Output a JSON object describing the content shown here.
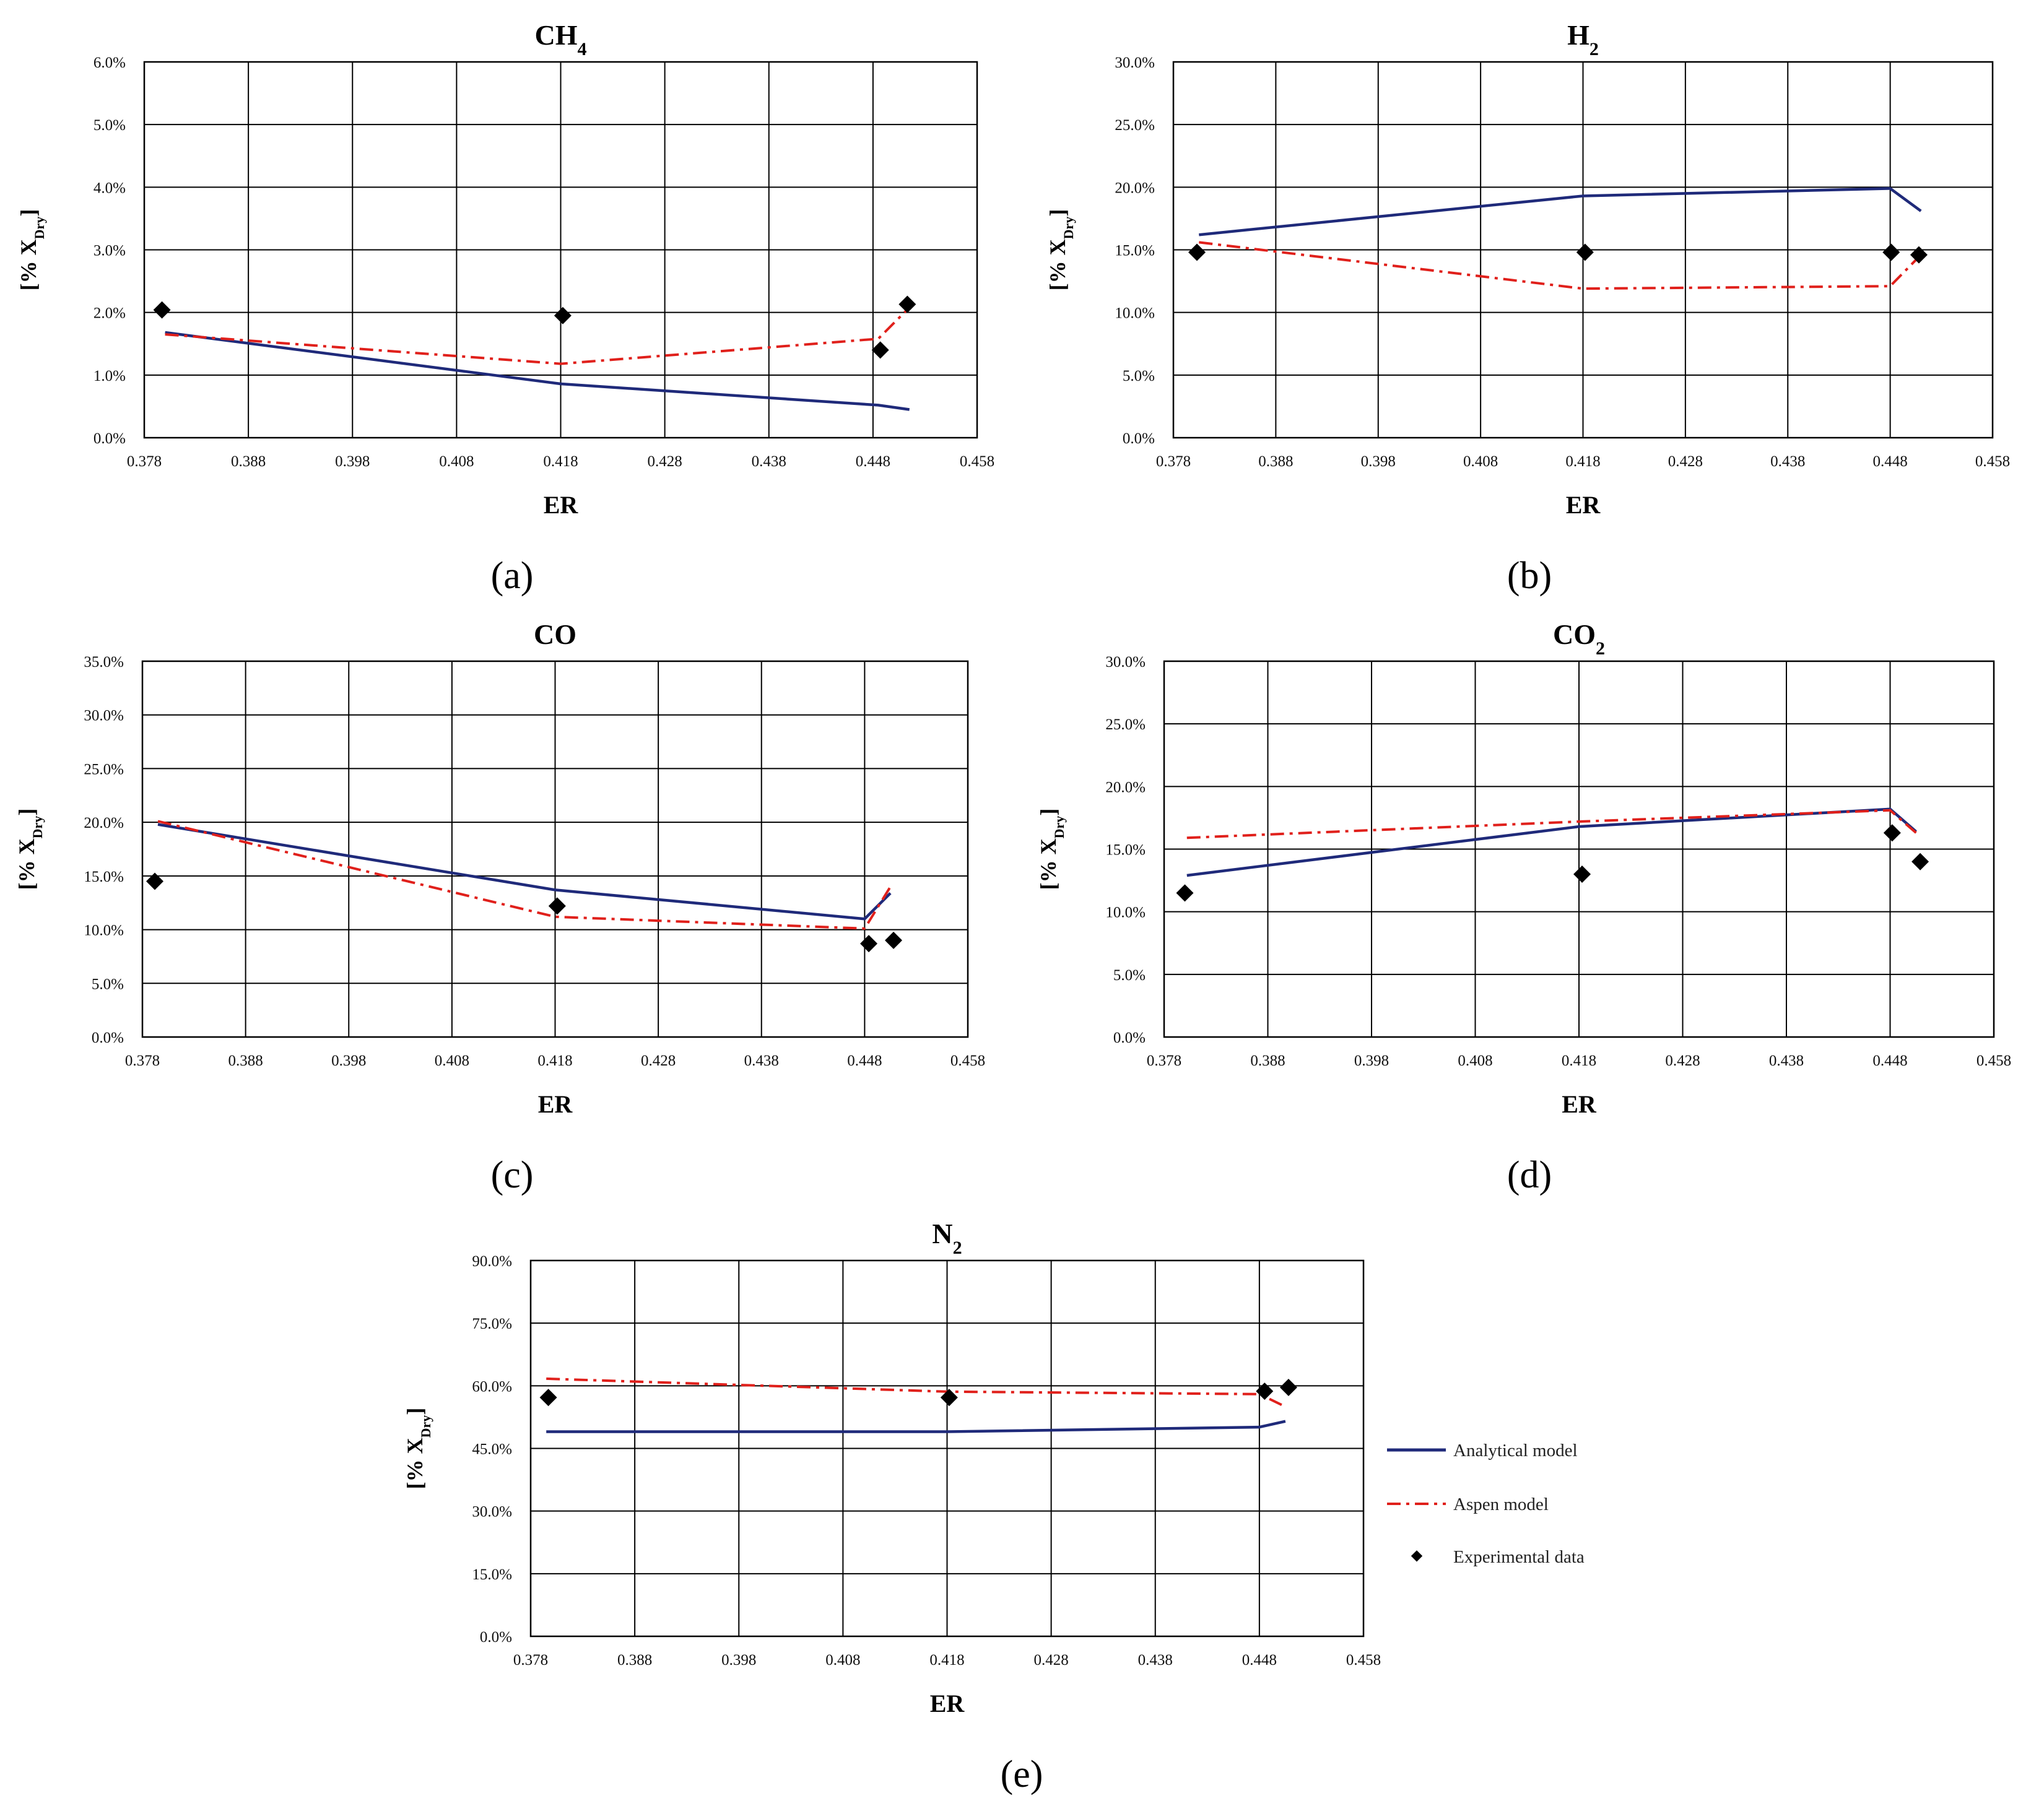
{
  "figure_panels": [
    {
      "id": "a",
      "label": "(a)"
    },
    {
      "id": "b",
      "label": "(b)"
    },
    {
      "id": "c",
      "label": "(c)"
    },
    {
      "id": "d",
      "label": "(d)"
    },
    {
      "id": "e",
      "label": "(e)"
    }
  ],
  "legend": {
    "analytical": "Analytical model",
    "aspen": "Aspen model",
    "experimental": "Experimental data"
  },
  "colors": {
    "analytical": "#1f2a7a",
    "aspen": "#e0201b",
    "experimental": "#000000",
    "grid": "#000000"
  },
  "chart_data": [
    {
      "type": "line",
      "panel": "a",
      "title": "CH",
      "title_sub": "4",
      "xlabel": "ER",
      "ylabel": "[% X",
      "ylabel_sub": "Dry",
      "ylabel_end": "]",
      "xlim": [
        0.378,
        0.458
      ],
      "ylim": [
        0,
        6.0
      ],
      "xticks": [
        "0.378",
        "0.388",
        "0.398",
        "0.408",
        "0.418",
        "0.428",
        "0.438",
        "0.448",
        "0.458"
      ],
      "yticks": [
        "0.0%",
        "1.0%",
        "2.0%",
        "3.0%",
        "4.0%",
        "5.0%",
        "6.0%"
      ],
      "grid": true,
      "series": [
        {
          "name": "Analytical model",
          "style": "solid",
          "x": [
            0.38,
            0.418,
            0.4485,
            0.4515
          ],
          "y": [
            1.68,
            0.86,
            0.52,
            0.45
          ]
        },
        {
          "name": "Aspen model",
          "style": "dashdot",
          "x": [
            0.38,
            0.418,
            0.4485,
            0.4515
          ],
          "y": [
            1.65,
            1.18,
            1.58,
            2.08
          ]
        },
        {
          "name": "Experimental data",
          "style": "marker",
          "x": [
            0.3797,
            0.4182,
            0.4487,
            0.4513
          ],
          "y": [
            2.04,
            1.95,
            1.4,
            2.13
          ]
        }
      ]
    },
    {
      "type": "line",
      "panel": "b",
      "title": "H",
      "title_sub": "2",
      "xlabel": "ER",
      "ylabel": "[% X",
      "ylabel_sub": "Dry",
      "ylabel_end": "]",
      "xlim": [
        0.378,
        0.458
      ],
      "ylim": [
        0,
        30.0
      ],
      "xticks": [
        "0.378",
        "0.388",
        "0.398",
        "0.408",
        "0.418",
        "0.428",
        "0.438",
        "0.448",
        "0.458"
      ],
      "yticks": [
        "0.0%",
        "5.0%",
        "10.0%",
        "15.0%",
        "20.0%",
        "25.0%",
        "30.0%"
      ],
      "grid": true,
      "series": [
        {
          "name": "Analytical model",
          "style": "solid",
          "x": [
            0.3805,
            0.418,
            0.448,
            0.451
          ],
          "y": [
            16.2,
            19.3,
            19.9,
            18.1
          ]
        },
        {
          "name": "Aspen model",
          "style": "dashdot",
          "x": [
            0.3805,
            0.418,
            0.448,
            0.451
          ],
          "y": [
            15.6,
            11.9,
            12.1,
            14.6
          ]
        },
        {
          "name": "Experimental data",
          "style": "marker",
          "x": [
            0.3803,
            0.4182,
            0.4481,
            0.4508
          ],
          "y": [
            14.8,
            14.8,
            14.8,
            14.6
          ]
        }
      ]
    },
    {
      "type": "line",
      "panel": "c",
      "title": "CO",
      "title_sub": "",
      "xlabel": "ER",
      "ylabel": "[% X",
      "ylabel_sub": "Dry",
      "ylabel_end": "]",
      "xlim": [
        0.378,
        0.458
      ],
      "ylim": [
        0,
        35.0
      ],
      "xticks": [
        "0.378",
        "0.388",
        "0.398",
        "0.408",
        "0.418",
        "0.428",
        "0.438",
        "0.448",
        "0.458"
      ],
      "yticks": [
        "0.0%",
        "5.0%",
        "10.0%",
        "15.0%",
        "20.0%",
        "25.0%",
        "30.0%",
        "35.0%"
      ],
      "grid": true,
      "series": [
        {
          "name": "Analytical model",
          "style": "solid",
          "x": [
            0.3795,
            0.418,
            0.448,
            0.4505
          ],
          "y": [
            19.8,
            13.7,
            11.0,
            13.4
          ]
        },
        {
          "name": "Aspen model",
          "style": "dashdot",
          "x": [
            0.3795,
            0.418,
            0.448,
            0.4505
          ],
          "y": [
            20.1,
            11.2,
            10.1,
            14.0
          ]
        },
        {
          "name": "Experimental data",
          "style": "marker",
          "x": [
            0.3792,
            0.4182,
            0.4484,
            0.4508
          ],
          "y": [
            14.5,
            12.2,
            8.7,
            9.0
          ]
        }
      ]
    },
    {
      "type": "line",
      "panel": "d",
      "title": "CO",
      "title_sub": "2",
      "xlabel": "ER",
      "ylabel": "[% X",
      "ylabel_sub": "Dry",
      "ylabel_end": "]",
      "xlim": [
        0.378,
        0.458
      ],
      "ylim": [
        0,
        30.0
      ],
      "xticks": [
        "0.378",
        "0.388",
        "0.398",
        "0.408",
        "0.418",
        "0.428",
        "0.438",
        "0.448",
        "0.458"
      ],
      "yticks": [
        "0.0%",
        "5.0%",
        "10.0%",
        "15.0%",
        "20.0%",
        "25.0%",
        "30.0%"
      ],
      "grid": true,
      "series": [
        {
          "name": "Analytical model",
          "style": "solid",
          "x": [
            0.3802,
            0.418,
            0.448,
            0.4505
          ],
          "y": [
            12.9,
            16.8,
            18.2,
            16.4
          ]
        },
        {
          "name": "Aspen model",
          "style": "dashdot",
          "x": [
            0.3802,
            0.418,
            0.448,
            0.4505
          ],
          "y": [
            15.9,
            17.2,
            18.1,
            16.3
          ]
        },
        {
          "name": "Experimental data",
          "style": "marker",
          "x": [
            0.38,
            0.4183,
            0.4482,
            0.4509
          ],
          "y": [
            11.5,
            13.0,
            16.3,
            14.0
          ]
        }
      ]
    },
    {
      "type": "line",
      "panel": "e",
      "title": "N",
      "title_sub": "2",
      "xlabel": "ER",
      "ylabel": "[% X",
      "ylabel_sub": "Dry",
      "ylabel_end": "]",
      "xlim": [
        0.378,
        0.458
      ],
      "ylim": [
        0,
        90.0
      ],
      "xticks": [
        "0.378",
        "0.388",
        "0.398",
        "0.408",
        "0.418",
        "0.428",
        "0.438",
        "0.448",
        "0.458"
      ],
      "yticks": [
        "0.0%",
        "15.0%",
        "30.0%",
        "45.0%",
        "60.0%",
        "75.0%",
        "90.0%"
      ],
      "grid": true,
      "series": [
        {
          "name": "Analytical model",
          "style": "solid",
          "x": [
            0.3795,
            0.418,
            0.448,
            0.4505
          ],
          "y": [
            49.0,
            49.0,
            50.1,
            51.5
          ]
        },
        {
          "name": "Aspen model",
          "style": "dashdot",
          "x": [
            0.3795,
            0.418,
            0.448,
            0.4505
          ],
          "y": [
            61.7,
            58.6,
            58.0,
            55.0
          ]
        },
        {
          "name": "Experimental data",
          "style": "marker",
          "x": [
            0.3797,
            0.4182,
            0.4485,
            0.4508
          ],
          "y": [
            57.2,
            57.2,
            58.7,
            59.6
          ]
        }
      ]
    }
  ]
}
